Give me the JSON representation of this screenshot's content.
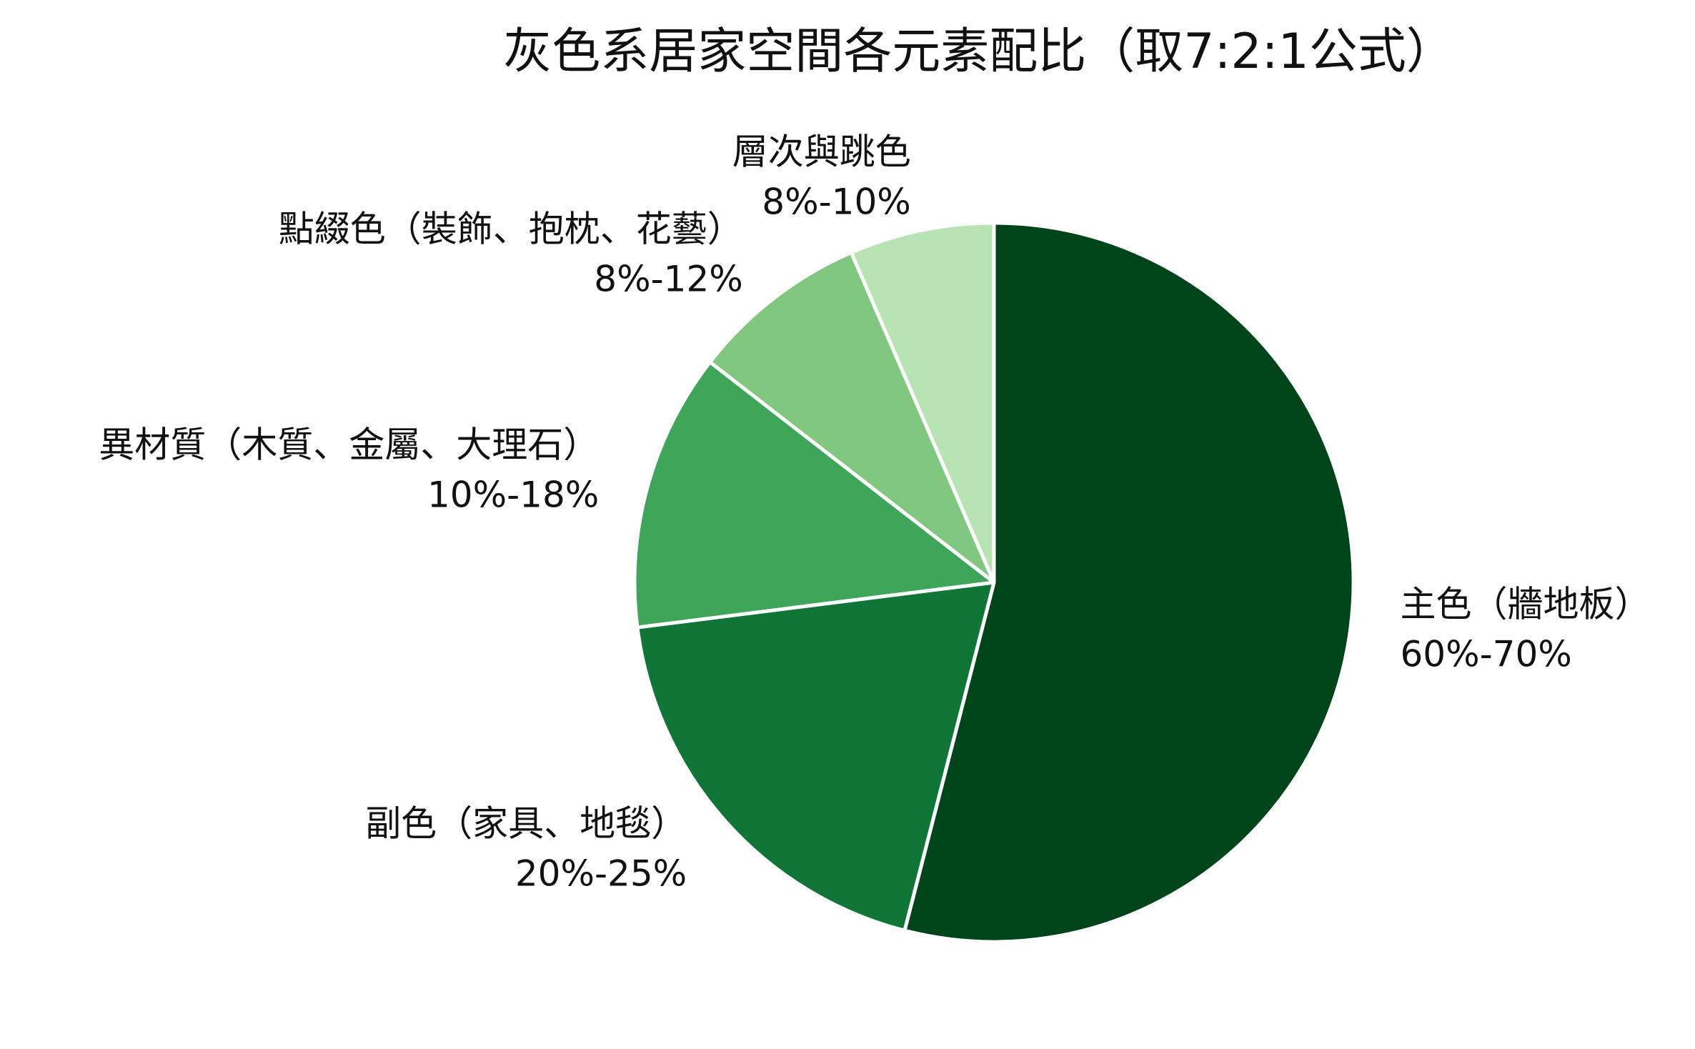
{
  "chart_data": {
    "type": "pie",
    "title": "灰色系居家空間各元素配比（取7:2:1公式）",
    "legend": "none",
    "slices": [
      {
        "label": "主色（牆地板）",
        "range": "60%-70%",
        "value": 54,
        "color": "#00441b"
      },
      {
        "label": "副色（家具、地毯）",
        "range": "20%-25%",
        "value": 19,
        "color": "#0f7637"
      },
      {
        "label": "異材質（木質、金屬、大理石）",
        "range": "10%-18%",
        "value": 12.5,
        "color": "#3fa55b"
      },
      {
        "label": "點綴色（裝飾、抱枕、花藝）",
        "range": "8%-12%",
        "value": 8,
        "color": "#81c780"
      },
      {
        "label": "層次與跳色",
        "range": "8%-10%",
        "value": 6.5,
        "color": "#b8e3b3"
      }
    ]
  }
}
